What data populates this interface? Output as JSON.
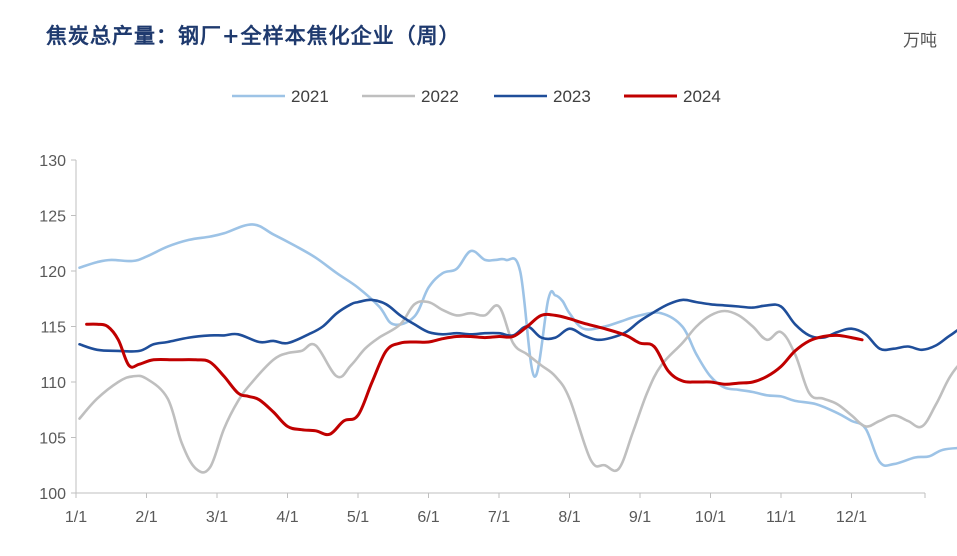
{
  "header": {
    "title": "焦炭总产量：钢厂+全样本焦化企业（周）",
    "unit": "万吨"
  },
  "chart_data": {
    "type": "line",
    "title": "焦炭总产量：钢厂+全样本焦化企业（周）",
    "unit": "万吨",
    "xlabel": "",
    "ylabel": "",
    "x_ticks": [
      "1/1",
      "2/1",
      "3/1",
      "4/1",
      "5/1",
      "6/1",
      "7/1",
      "8/1",
      "9/1",
      "10/1",
      "11/1",
      "12/1"
    ],
    "ylim": [
      100,
      130
    ],
    "y_ticks": [
      100,
      105,
      110,
      115,
      120,
      125,
      130
    ],
    "legend_position": "top-center",
    "grid": false,
    "series": [
      {
        "name": "2021",
        "color": "#9dc3e6",
        "x": [
          0.05,
          0.3,
          0.5,
          0.8,
          1.0,
          1.3,
          1.6,
          1.9,
          2.1,
          2.5,
          2.8,
          3.1,
          3.4,
          3.7,
          4.0,
          4.3,
          4.5,
          4.8,
          5.0,
          5.2,
          5.4,
          5.6,
          5.8,
          5.95,
          6.1,
          6.3,
          6.5,
          6.7,
          6.8,
          6.9,
          7.0,
          7.2,
          7.5,
          7.7,
          8.0,
          8.3,
          8.6,
          8.8,
          9.0,
          9.2,
          9.4,
          9.6,
          9.8,
          10.0,
          10.2,
          10.5,
          10.8,
          11.0,
          11.2,
          11.4,
          11.6,
          11.9,
          12.1,
          12.3,
          12.6,
          12.8,
          12.95
        ],
        "y": [
          120.3,
          120.8,
          121.0,
          120.9,
          121.3,
          122.2,
          122.8,
          123.1,
          123.4,
          124.2,
          123.3,
          122.3,
          121.2,
          119.8,
          118.5,
          116.8,
          115.2,
          115.9,
          118.5,
          119.8,
          120.2,
          121.8,
          121.0,
          121.0,
          121.0,
          120.0,
          110.5,
          117.5,
          117.8,
          117.3,
          116.2,
          114.8,
          115.0,
          115.4,
          116.0,
          116.2,
          115.0,
          112.5,
          110.5,
          109.5,
          109.3,
          109.1,
          108.8,
          108.7,
          108.3,
          108.0,
          107.2,
          106.5,
          105.8,
          102.8,
          102.6,
          103.2,
          103.3,
          103.9,
          104.1,
          104.3,
          104.6
        ]
      },
      {
        "name": "2022",
        "color": "#bfbfbf",
        "x": [
          0.05,
          0.3,
          0.6,
          0.8,
          1.0,
          1.3,
          1.5,
          1.7,
          1.9,
          2.1,
          2.3,
          2.5,
          2.8,
          3.0,
          3.2,
          3.4,
          3.7,
          3.9,
          4.1,
          4.3,
          4.6,
          4.8,
          5.0,
          5.2,
          5.4,
          5.6,
          5.8,
          6.0,
          6.2,
          6.4,
          6.6,
          6.8,
          7.0,
          7.3,
          7.5,
          7.7,
          7.9,
          8.1,
          8.3,
          8.6,
          8.8,
          9.0,
          9.2,
          9.4,
          9.6,
          9.8,
          10.0,
          10.2,
          10.4,
          10.6,
          10.8,
          11.0,
          11.2,
          11.4,
          11.6,
          11.8,
          12.0,
          12.2,
          12.4,
          12.6,
          12.8,
          12.95
        ],
        "y": [
          106.7,
          108.5,
          110.0,
          110.5,
          110.3,
          108.5,
          104.5,
          102.2,
          102.3,
          105.8,
          108.3,
          110.0,
          112.0,
          112.6,
          112.8,
          113.3,
          110.5,
          111.5,
          113.0,
          114.0,
          115.2,
          117.0,
          117.2,
          116.5,
          116.0,
          116.2,
          116.0,
          116.8,
          113.5,
          112.5,
          111.5,
          110.5,
          108.5,
          103.0,
          102.5,
          102.2,
          105.5,
          109.0,
          111.5,
          113.5,
          115.0,
          116.0,
          116.4,
          116.0,
          115.0,
          113.8,
          114.5,
          112.5,
          109.0,
          108.5,
          108.0,
          107.0,
          106.0,
          106.5,
          107.0,
          106.5,
          106.0,
          108.0,
          110.5,
          112.0,
          112.4,
          112.3
        ]
      },
      {
        "name": "2023",
        "color": "#1f4e9a",
        "x": [
          0.05,
          0.3,
          0.6,
          0.9,
          1.1,
          1.3,
          1.6,
          1.9,
          2.1,
          2.3,
          2.6,
          2.8,
          3.0,
          3.3,
          3.5,
          3.7,
          3.9,
          4.0,
          4.2,
          4.4,
          4.6,
          4.8,
          5.0,
          5.2,
          5.4,
          5.6,
          5.8,
          6.0,
          6.2,
          6.4,
          6.6,
          6.8,
          7.0,
          7.2,
          7.4,
          7.6,
          7.8,
          8.0,
          8.2,
          8.4,
          8.6,
          8.8,
          9.0,
          9.2,
          9.4,
          9.6,
          9.8,
          10.0,
          10.2,
          10.4,
          10.6,
          10.8,
          11.0,
          11.2,
          11.4,
          11.6,
          11.8,
          12.0,
          12.2,
          12.4,
          12.6,
          12.8,
          12.95
        ],
        "y": [
          113.4,
          112.9,
          112.8,
          112.8,
          113.4,
          113.6,
          114.0,
          114.2,
          114.2,
          114.3,
          113.6,
          113.7,
          113.5,
          114.3,
          115.0,
          116.2,
          117.0,
          117.2,
          117.4,
          117.0,
          116.0,
          115.2,
          114.5,
          114.3,
          114.4,
          114.3,
          114.4,
          114.4,
          114.2,
          115.0,
          114.0,
          114.0,
          114.8,
          114.2,
          113.8,
          114.0,
          114.5,
          115.5,
          116.3,
          117.0,
          117.4,
          117.2,
          117.0,
          116.9,
          116.8,
          116.7,
          116.9,
          116.8,
          115.2,
          114.2,
          114.0,
          114.5,
          114.8,
          114.3,
          113.0,
          113.0,
          113.2,
          112.9,
          113.3,
          114.2,
          114.9,
          114.3,
          113.7
        ]
      },
      {
        "name": "2024",
        "color": "#c00000",
        "x": [
          0.15,
          0.3,
          0.45,
          0.6,
          0.75,
          0.9,
          1.1,
          1.4,
          1.7,
          1.9,
          2.1,
          2.3,
          2.45,
          2.6,
          2.8,
          3.0,
          3.2,
          3.4,
          3.6,
          3.8,
          4.0,
          4.2,
          4.4,
          4.6,
          4.8,
          5.0,
          5.2,
          5.4,
          5.6,
          5.8,
          6.0,
          6.2,
          6.4,
          6.6,
          6.8,
          7.0,
          7.2,
          7.5,
          7.8,
          8.0,
          8.2,
          8.4,
          8.6,
          8.8,
          9.0,
          9.2,
          9.4,
          9.6,
          9.8,
          10.0,
          10.2,
          10.4,
          10.6,
          10.8,
          11.0,
          11.15
        ],
        "y": [
          115.2,
          115.2,
          115.0,
          113.8,
          111.5,
          111.6,
          112.0,
          112.0,
          112.0,
          111.8,
          110.5,
          109.0,
          108.7,
          108.4,
          107.3,
          106.0,
          105.7,
          105.6,
          105.3,
          106.5,
          107.0,
          110.0,
          112.8,
          113.5,
          113.6,
          113.6,
          113.9,
          114.1,
          114.1,
          114.0,
          114.1,
          114.1,
          115.0,
          116.0,
          116.0,
          115.7,
          115.3,
          114.8,
          114.2,
          113.5,
          113.2,
          111.0,
          110.1,
          110.0,
          110.0,
          109.8,
          109.9,
          110.0,
          110.5,
          111.4,
          112.8,
          113.7,
          114.1,
          114.2,
          114.0,
          113.8
        ]
      }
    ]
  }
}
